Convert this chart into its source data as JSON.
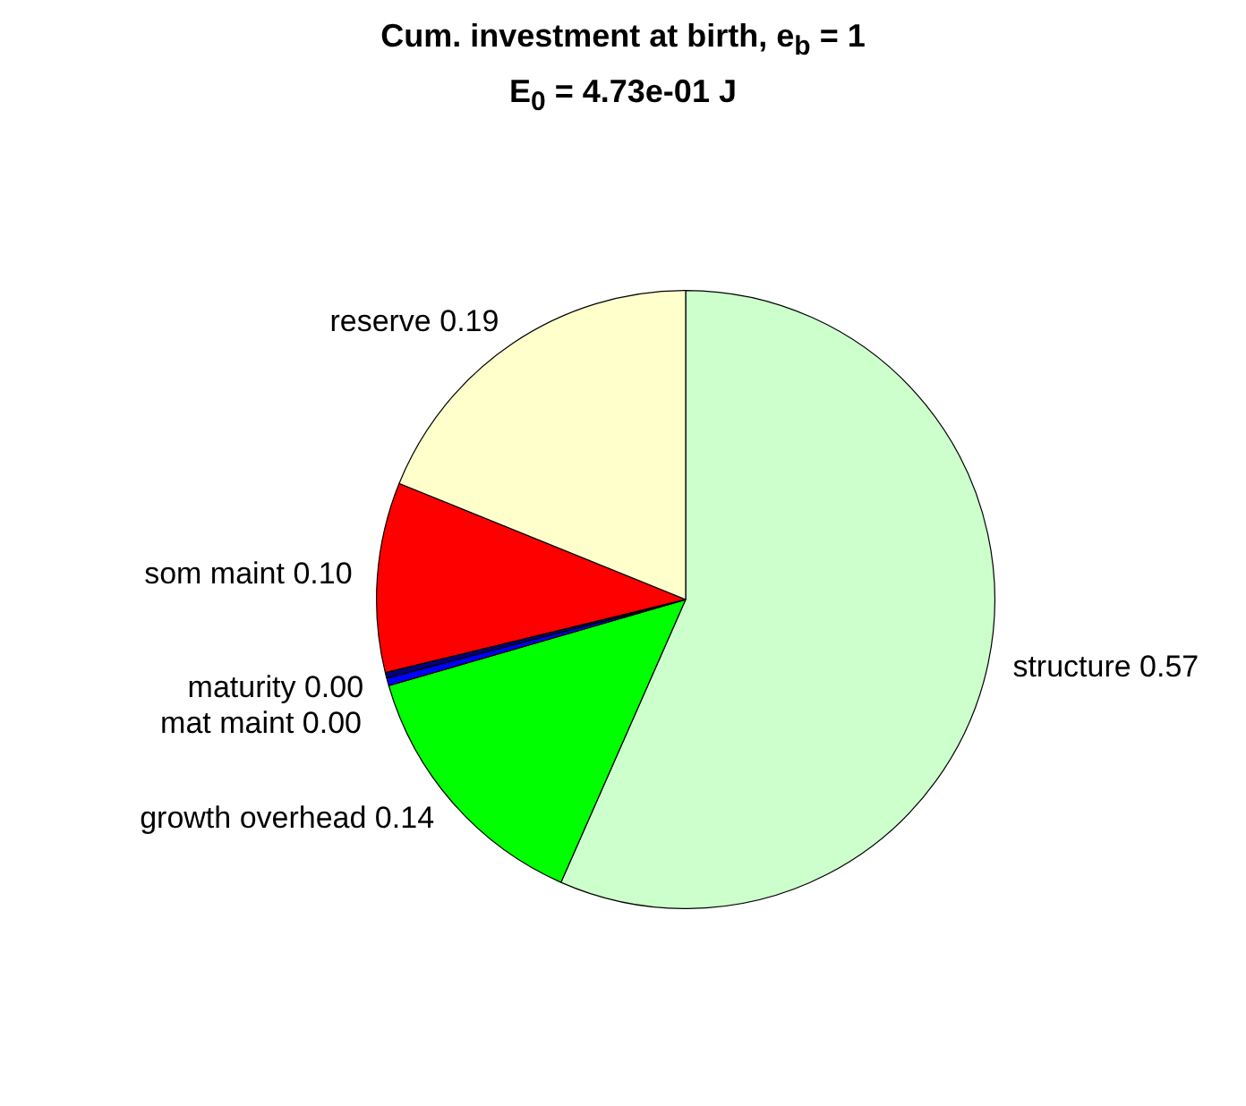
{
  "chart_data": {
    "type": "pie",
    "title": "Cum. investment at birth, e$_{b}$ = 1",
    "subtitle": "E$_{0}$ = 4.73e-01 J",
    "categories": [
      "structure",
      "growth overhead",
      "maturity",
      "mat maint",
      "som maint",
      "reserve"
    ],
    "values": [
      0.57,
      0.14,
      0.004,
      0.003,
      0.1,
      0.19
    ],
    "value_labels": [
      "0.57",
      "0.14",
      "0.00",
      "0.00",
      "0.10",
      "0.19"
    ],
    "colors": [
      "#ccffcc",
      "#00ff00",
      "#0000ff",
      "#000080",
      "#ff0000",
      "#ffffcc"
    ],
    "legend": false
  }
}
